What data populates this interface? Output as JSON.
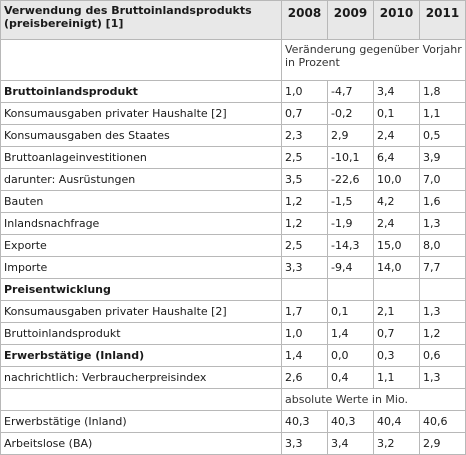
{
  "table": {
    "header_label": "Verwendung des Bruttoinlandsprodukts (preisbereinigt) [1]",
    "years": [
      "2008",
      "2009",
      "2010",
      "2011"
    ],
    "note_percent": "Veränderung gegenüber Vorjahr in Prozent",
    "note_absolute": "absolute Werte in Mio.",
    "rows_percent": [
      {
        "label": "Bruttoinlandsprodukt",
        "bold": true,
        "values": [
          "1,0",
          "-4,7",
          "3,4",
          "1,8"
        ]
      },
      {
        "label": "Konsumausgaben privater Haushalte [2]",
        "bold": false,
        "values": [
          "0,7",
          "-0,2",
          "0,1",
          "1,1"
        ]
      },
      {
        "label": "Konsumausgaben des Staates",
        "bold": false,
        "values": [
          "2,3",
          "2,9",
          "2,4",
          "0,5"
        ]
      },
      {
        "label": "Bruttoanlageinvestitionen",
        "bold": false,
        "values": [
          "2,5",
          "-10,1",
          "6,4",
          "3,9"
        ]
      },
      {
        "label": "darunter: Ausrüstungen",
        "bold": false,
        "values": [
          "3,5",
          "-22,6",
          "10,0",
          "7,0"
        ]
      },
      {
        "label": "Bauten",
        "bold": false,
        "values": [
          "1,2",
          "-1,5",
          "4,2",
          "1,6"
        ]
      },
      {
        "label": "Inlandsnachfrage",
        "bold": false,
        "values": [
          "1,2",
          "-1,9",
          "2,4",
          "1,3"
        ]
      },
      {
        "label": "Exporte",
        "bold": false,
        "values": [
          "2,5",
          "-14,3",
          "15,0",
          "8,0"
        ]
      },
      {
        "label": "Importe",
        "bold": false,
        "values": [
          "3,3",
          "-9,4",
          "14,0",
          "7,7"
        ]
      },
      {
        "label": "Preisentwicklung",
        "bold": true,
        "values": [
          "",
          "",
          "",
          ""
        ]
      },
      {
        "label": "Konsumausgaben privater Haushalte [2]",
        "bold": false,
        "values": [
          "1,7",
          "0,1",
          "2,1",
          "1,3"
        ]
      },
      {
        "label": "Bruttoinlandsprodukt",
        "bold": false,
        "values": [
          "1,0",
          "1,4",
          "0,7",
          "1,2"
        ]
      },
      {
        "label": "Erwerbstätige (Inland)",
        "bold": true,
        "values": [
          "1,4",
          "0,0",
          "0,3",
          "0,6"
        ]
      },
      {
        "label": "nachrichtlich: Verbraucherpreisindex",
        "bold": false,
        "values": [
          "2,6",
          "0,4",
          "1,1",
          "1,3"
        ]
      }
    ],
    "rows_absolute": [
      {
        "label": "Erwerbstätige (Inland)",
        "bold": false,
        "values": [
          "40,3",
          "40,3",
          "40,4",
          "40,6"
        ]
      },
      {
        "label": "Arbeitslose (BA)",
        "bold": false,
        "values": [
          "3,3",
          "3,4",
          "3,2",
          "2,9"
        ]
      }
    ]
  }
}
